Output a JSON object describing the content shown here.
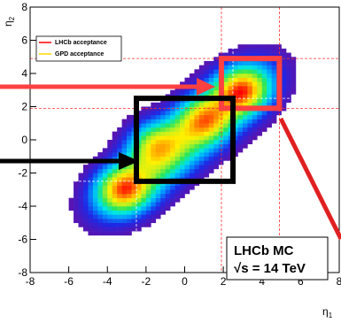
{
  "chart_data": {
    "type": "heatmap",
    "xlabel": "η",
    "xlabel_sub": "1",
    "ylabel": "η",
    "ylabel_sub": "2",
    "xlim": [
      -8,
      8
    ],
    "ylim": [
      -8,
      8
    ],
    "x_ticks": [
      -8,
      -6,
      -4,
      -2,
      0,
      2,
      4,
      6,
      8
    ],
    "y_ticks": [
      -8,
      -6,
      -4,
      -2,
      0,
      2,
      4,
      6,
      8
    ],
    "x_tick_labels": [
      "-8",
      "-6",
      "-4",
      "-2",
      "0",
      "2",
      "4",
      "6",
      "8"
    ],
    "y_tick_labels": [
      "-8",
      "-6",
      "-4",
      "-2",
      "0",
      "2",
      "4",
      "6",
      "8"
    ],
    "legend": [
      {
        "label": "LHCb acceptance",
        "color": "#ff0000"
      },
      {
        "label": "GPD acceptance",
        "color": "#ffd700"
      }
    ],
    "lhcb_acceptance_range": [
      1.9,
      4.9
    ],
    "gpd_acceptance_range": [
      -2.5,
      2.5
    ],
    "highlight_regions": [
      {
        "color": "#ff4040",
        "x": [
          1.9,
          4.9
        ],
        "y": [
          1.9,
          4.9
        ]
      },
      {
        "color": "#000000",
        "x": [
          -2.5,
          2.5
        ],
        "y": [
          -2.5,
          2.5
        ]
      }
    ],
    "info_box": {
      "line1": "LHCb MC",
      "line2": "√s = 14 TeV"
    },
    "distribution": {
      "description": "density along diagonal band",
      "peaks": [
        {
          "x": -3.2,
          "y": -3.0,
          "weight": 1.0
        },
        {
          "x": 3.0,
          "y": 3.0,
          "weight": 1.0
        },
        {
          "x": -1.6,
          "y": -0.2,
          "weight": 0.75
        },
        {
          "x": 1.0,
          "y": 1.2,
          "weight": 0.7
        }
      ]
    }
  },
  "colors": {
    "frame_bg": "#ffffff",
    "heat_low": "#5a18b0",
    "heat_high": "#ff0000"
  }
}
